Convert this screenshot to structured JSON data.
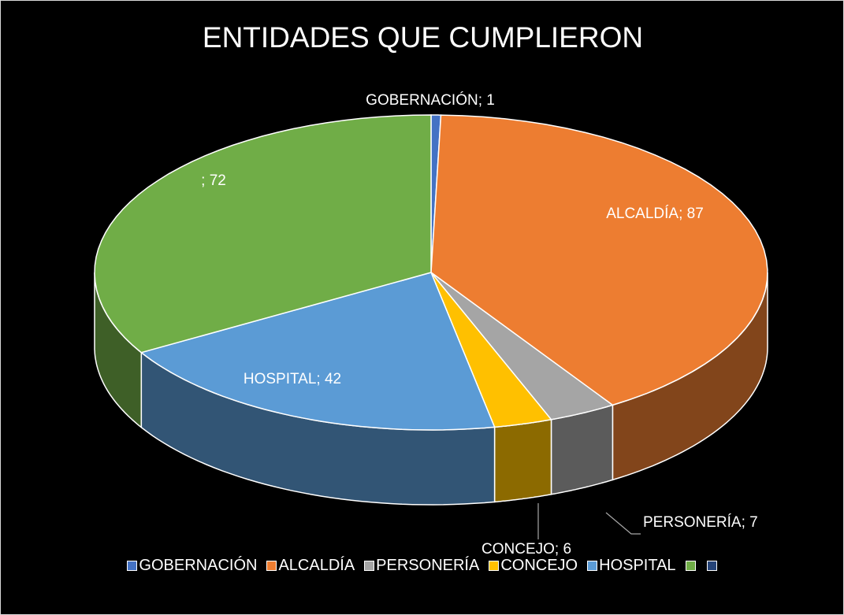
{
  "chart_data": {
    "type": "pie3d",
    "title": "ENTIDADES QUE CUMPLIERON",
    "categories": [
      "GOBERNACIÓN",
      "ALCALDÍA",
      "PERSONERÍA",
      "CONCEJO",
      "HOSPITAL",
      null,
      null
    ],
    "values": [
      1,
      87,
      7,
      6,
      42,
      72,
      null
    ],
    "value_labels": [
      "GOBERNACIÓN; 1",
      "ALCALDÍA; 87",
      "PERSONERÍA; 7",
      "CONCEJO; 6",
      "HOSPITAL; 42",
      "; 72",
      null
    ],
    "colors": [
      "#4472c4",
      "#ed7d31",
      "#a5a5a5",
      "#ffc000",
      "#5b9bd5",
      "#70ad47",
      "#264478"
    ],
    "legend": "bottom"
  }
}
